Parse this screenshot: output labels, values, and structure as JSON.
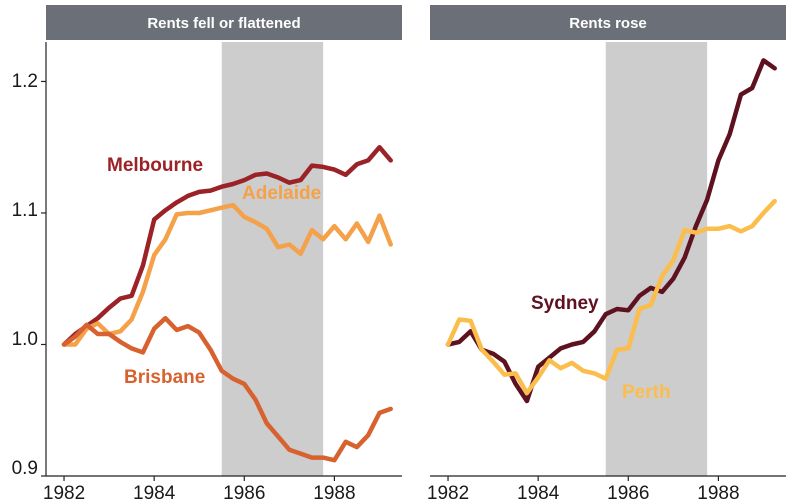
{
  "chart_data": {
    "type": "line",
    "ylim": [
      0.9,
      1.23
    ],
    "xlim": [
      1981.6,
      1989.5
    ],
    "y_ticks": [
      0.9,
      1.0,
      1.1,
      1.2
    ],
    "y_tick_labels": [
      "0.9",
      "1.0",
      "1.1",
      "1.2"
    ],
    "x_ticks": [
      1982,
      1984,
      1986,
      1988
    ],
    "x_tick_labels": [
      "1982",
      "1984",
      "1986",
      "1988"
    ],
    "grid": false,
    "shaded_period": [
      1985.5,
      1987.75
    ],
    "colors": {
      "Melbourne": "#9b2226",
      "Adelaide": "#f4a14a",
      "Brisbane": "#d8622f",
      "Sydney": "#5e1220",
      "Perth": "#fbbd4c",
      "shade": "#cdcdcd",
      "strip": "#6b7078"
    },
    "panels": [
      {
        "title": "Rents fell or flattened",
        "series": [
          {
            "name": "Melbourne",
            "x": [
              1982,
              1982.25,
              1982.5,
              1982.75,
              1983,
              1983.25,
              1983.5,
              1983.75,
              1984,
              1984.25,
              1984.5,
              1984.75,
              1985,
              1985.25,
              1985.5,
              1985.75,
              1986,
              1986.25,
              1986.5,
              1986.75,
              1987,
              1987.25,
              1987.5,
              1987.75,
              1988,
              1988.25,
              1988.5,
              1988.75,
              1989,
              1989.25
            ],
            "values": [
              1.0,
              1.008,
              1.014,
              1.02,
              1.028,
              1.035,
              1.037,
              1.06,
              1.095,
              1.102,
              1.108,
              1.113,
              1.116,
              1.117,
              1.12,
              1.122,
              1.125,
              1.129,
              1.13,
              1.127,
              1.123,
              1.125,
              1.136,
              1.135,
              1.133,
              1.129,
              1.137,
              1.14,
              1.15,
              1.14
            ]
          },
          {
            "name": "Adelaide",
            "x": [
              1982,
              1982.25,
              1982.5,
              1982.75,
              1983,
              1983.25,
              1983.5,
              1983.75,
              1984,
              1984.25,
              1984.5,
              1984.75,
              1985,
              1985.25,
              1985.5,
              1985.75,
              1986,
              1986.25,
              1986.5,
              1986.75,
              1987,
              1987.25,
              1987.5,
              1987.75,
              1988,
              1988.25,
              1988.5,
              1988.75,
              1989,
              1989.25
            ],
            "values": [
              1.0,
              1.0,
              1.012,
              1.016,
              1.008,
              1.01,
              1.019,
              1.04,
              1.068,
              1.08,
              1.099,
              1.1,
              1.1,
              1.102,
              1.104,
              1.106,
              1.097,
              1.093,
              1.088,
              1.074,
              1.076,
              1.069,
              1.087,
              1.08,
              1.09,
              1.08,
              1.092,
              1.078,
              1.098,
              1.076
            ]
          },
          {
            "name": "Brisbane",
            "x": [
              1982,
              1982.25,
              1982.5,
              1982.75,
              1983,
              1983.25,
              1983.5,
              1983.75,
              1984,
              1984.25,
              1984.5,
              1984.75,
              1985,
              1985.25,
              1985.5,
              1985.75,
              1986,
              1986.25,
              1986.5,
              1986.75,
              1987,
              1987.25,
              1987.5,
              1987.75,
              1988,
              1988.25,
              1988.5,
              1988.75,
              1989,
              1989.25
            ],
            "values": [
              1.0,
              1.006,
              1.015,
              1.008,
              1.008,
              1.002,
              0.997,
              0.994,
              1.012,
              1.02,
              1.011,
              1.014,
              1.009,
              0.996,
              0.98,
              0.974,
              0.97,
              0.958,
              0.94,
              0.93,
              0.92,
              0.917,
              0.914,
              0.914,
              0.912,
              0.926,
              0.922,
              0.931,
              0.948,
              0.951
            ]
          }
        ],
        "labels": [
          "Melbourne",
          "Adelaide",
          "Brisbane"
        ]
      },
      {
        "title": "Rents rose",
        "series": [
          {
            "name": "Sydney",
            "x": [
              1982,
              1982.25,
              1982.5,
              1982.75,
              1983,
              1983.25,
              1983.5,
              1983.75,
              1984,
              1984.25,
              1984.5,
              1984.75,
              1985,
              1985.25,
              1985.5,
              1985.75,
              1986,
              1986.25,
              1986.5,
              1986.75,
              1987,
              1987.25,
              1987.5,
              1987.75,
              1988,
              1988.25,
              1988.5,
              1988.75,
              1989,
              1989.25
            ],
            "values": [
              1.0,
              1.002,
              1.01,
              0.996,
              0.993,
              0.987,
              0.97,
              0.957,
              0.983,
              0.99,
              0.997,
              1.0,
              1.002,
              1.01,
              1.023,
              1.027,
              1.026,
              1.037,
              1.043,
              1.04,
              1.05,
              1.066,
              1.09,
              1.11,
              1.14,
              1.16,
              1.19,
              1.195,
              1.216,
              1.21
            ]
          },
          {
            "name": "Perth",
            "x": [
              1982,
              1982.25,
              1982.5,
              1982.75,
              1983,
              1983.25,
              1983.5,
              1983.75,
              1984,
              1984.25,
              1984.5,
              1984.75,
              1985,
              1985.25,
              1985.5,
              1985.75,
              1986,
              1986.25,
              1986.5,
              1986.75,
              1987,
              1987.25,
              1987.5,
              1987.75,
              1988,
              1988.25,
              1988.5,
              1988.75,
              1989,
              1989.25
            ],
            "values": [
              1.0,
              1.019,
              1.018,
              0.996,
              0.987,
              0.977,
              0.978,
              0.963,
              0.975,
              0.988,
              0.982,
              0.986,
              0.98,
              0.978,
              0.974,
              0.996,
              0.997,
              1.027,
              1.03,
              1.052,
              1.064,
              1.087,
              1.085,
              1.088,
              1.088,
              1.09,
              1.086,
              1.09,
              1.1,
              1.109
            ]
          }
        ],
        "labels": [
          "Sydney",
          "Perth"
        ]
      }
    ]
  }
}
